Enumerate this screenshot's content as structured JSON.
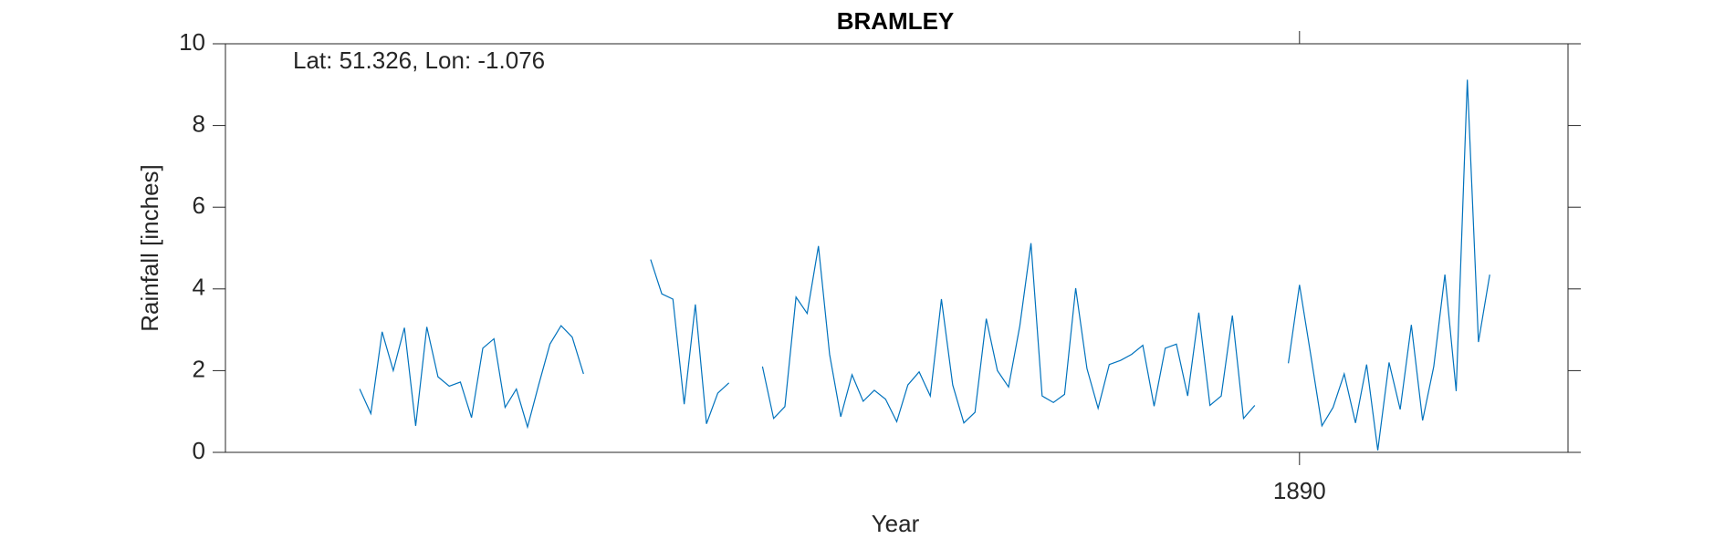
{
  "chart_data": {
    "type": "line",
    "title": "BRAMLEY",
    "annotation": "Lat: 51.326, Lon: -1.076",
    "x_label": "Year",
    "y_label": "Rainfall [inches]",
    "xlim": [
      1882,
      1892
    ],
    "xticks": [
      1890
    ],
    "ylim": [
      0,
      10
    ],
    "yticks": [
      0,
      2,
      4,
      6,
      8,
      10
    ],
    "x": [
      1883.0,
      1883.083,
      1883.167,
      1883.25,
      1883.333,
      1883.417,
      1883.5,
      1883.583,
      1883.667,
      1883.75,
      1883.833,
      1883.917,
      1884.0,
      1884.083,
      1884.167,
      1884.25,
      1884.333,
      1884.417,
      1884.5,
      1884.583,
      1884.667,
      1884.75,
      1884.833,
      1884.917,
      1885.0,
      1885.083,
      1885.167,
      1885.25,
      1885.333,
      1885.417,
      1885.5,
      1885.583,
      1885.667,
      1885.75,
      1885.833,
      1885.917,
      1886.0,
      1886.083,
      1886.167,
      1886.25,
      1886.333,
      1886.417,
      1886.5,
      1886.583,
      1886.667,
      1886.75,
      1886.833,
      1886.917,
      1887.0,
      1887.083,
      1887.167,
      1887.25,
      1887.333,
      1887.417,
      1887.5,
      1887.583,
      1887.667,
      1887.75,
      1887.833,
      1887.917,
      1888.0,
      1888.083,
      1888.167,
      1888.25,
      1888.333,
      1888.417,
      1888.5,
      1888.583,
      1888.667,
      1888.75,
      1888.833,
      1888.917,
      1889.0,
      1889.083,
      1889.167,
      1889.25,
      1889.333,
      1889.417,
      1889.5,
      1889.583,
      1889.667,
      1889.75,
      1889.833,
      1889.917,
      1890.0,
      1890.083,
      1890.167,
      1890.25,
      1890.333,
      1890.417,
      1890.5,
      1890.583,
      1890.667,
      1890.75,
      1890.833,
      1890.917,
      1891.0,
      1891.083,
      1891.167,
      1891.25,
      1891.333,
      1891.417
    ],
    "series": [
      {
        "name": "Rainfall",
        "color": "#0072bd",
        "values": [
          1.55,
          0.95,
          2.95,
          2.0,
          3.05,
          0.65,
          3.07,
          1.85,
          1.62,
          1.72,
          0.85,
          2.55,
          2.78,
          1.1,
          1.55,
          0.62,
          1.65,
          2.65,
          3.1,
          2.82,
          1.92,
          null,
          null,
          null,
          null,
          null,
          4.72,
          3.88,
          3.75,
          1.18,
          3.62,
          0.7,
          1.45,
          1.7,
          null,
          null,
          2.1,
          0.83,
          1.12,
          3.8,
          3.4,
          5.05,
          2.4,
          0.87,
          1.9,
          1.25,
          1.52,
          1.3,
          0.75,
          1.65,
          1.97,
          1.38,
          3.75,
          1.65,
          0.72,
          0.98,
          3.27,
          2.0,
          1.6,
          3.1,
          5.12,
          1.38,
          1.22,
          1.42,
          4.02,
          2.05,
          1.08,
          2.15,
          2.25,
          2.4,
          2.62,
          1.13,
          2.55,
          2.65,
          1.38,
          3.42,
          1.15,
          1.38,
          3.35,
          0.83,
          1.15,
          null,
          null,
          2.18,
          4.1,
          2.4,
          0.65,
          1.1,
          1.92,
          0.72,
          2.15,
          0.05,
          2.2,
          1.05,
          3.12,
          0.78,
          2.1,
          4.35,
          1.5,
          9.12,
          2.7,
          4.35
        ]
      }
    ]
  }
}
